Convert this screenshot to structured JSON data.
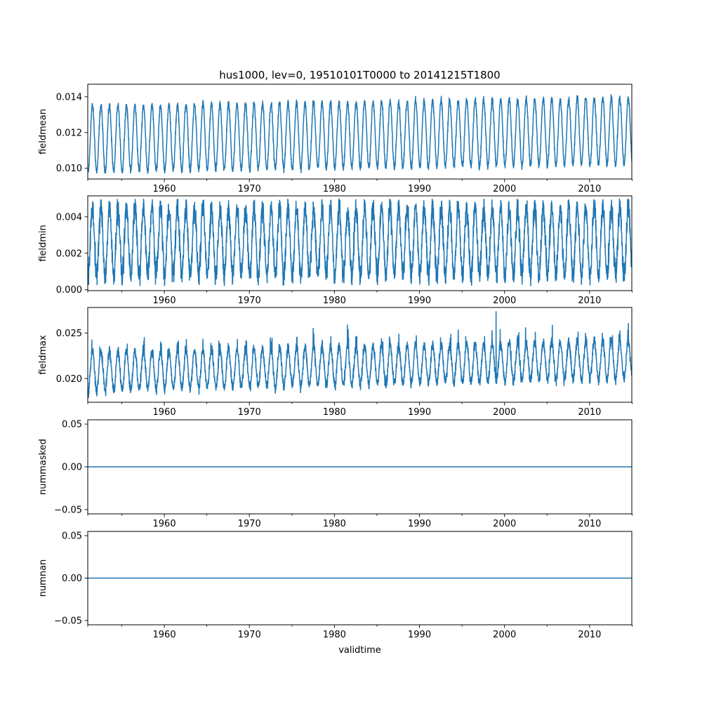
{
  "title": "hus1000, lev=0, 19510101T0000 to 20141215T1800",
  "series_color": "#1f77b4",
  "chart_data": {
    "type": "line",
    "title": "hus1000, lev=0, 19510101T0000 to 20141215T1800",
    "xlabel": "validtime",
    "x_range": [
      1951.0,
      2014.96
    ],
    "x_ticks": [
      "1960",
      "1970",
      "1980",
      "1990",
      "2000",
      "2010"
    ],
    "grid": false,
    "panels": [
      {
        "name": "fieldmean",
        "ylabel": "fieldmean",
        "ylim": [
          0.0094,
          0.0147
        ],
        "yticks": [
          "0.010",
          "0.012",
          "0.014"
        ],
        "series": [
          {
            "annual_cycle": {
              "min": 0.01,
              "max": 0.0137,
              "period_years": 1
            },
            "max_observed": 0.0144,
            "min_observed": 0.0097,
            "trend_per_decade": 7e-05
          }
        ]
      },
      {
        "name": "fieldmin",
        "ylabel": "fieldmin",
        "ylim": [
          -5e-05,
          0.00515
        ],
        "yticks": [
          "0.000",
          "0.002",
          "0.004"
        ],
        "series": [
          {
            "annual_cycle": {
              "min": 0.0008,
              "max": 0.0045,
              "period_years": 1
            },
            "max_observed": 0.005,
            "min_observed": 0.0002
          }
        ]
      },
      {
        "name": "fieldmax",
        "ylabel": "fieldmax",
        "ylim": [
          0.0174,
          0.0278
        ],
        "yticks": [
          "0.020",
          "0.025"
        ],
        "series": [
          {
            "annual_cycle": {
              "min": 0.0193,
              "max": 0.0235,
              "period_years": 1
            },
            "max_observed": 0.0274,
            "max_observed_year": 1999.0,
            "min_observed": 0.0178,
            "trend_per_decade": 0.0002
          }
        ]
      },
      {
        "name": "nummasked",
        "ylabel": "nummasked",
        "ylim": [
          -0.055,
          0.055
        ],
        "yticks": [
          "0.05",
          "0.00",
          "−0.05"
        ],
        "series": [
          {
            "constant_value": 0.0
          }
        ]
      },
      {
        "name": "numnan",
        "ylabel": "numnan",
        "ylim": [
          -0.055,
          0.055
        ],
        "yticks": [
          "0.05",
          "0.00",
          "−0.05"
        ],
        "series": [
          {
            "constant_value": 0.0
          }
        ]
      }
    ]
  }
}
